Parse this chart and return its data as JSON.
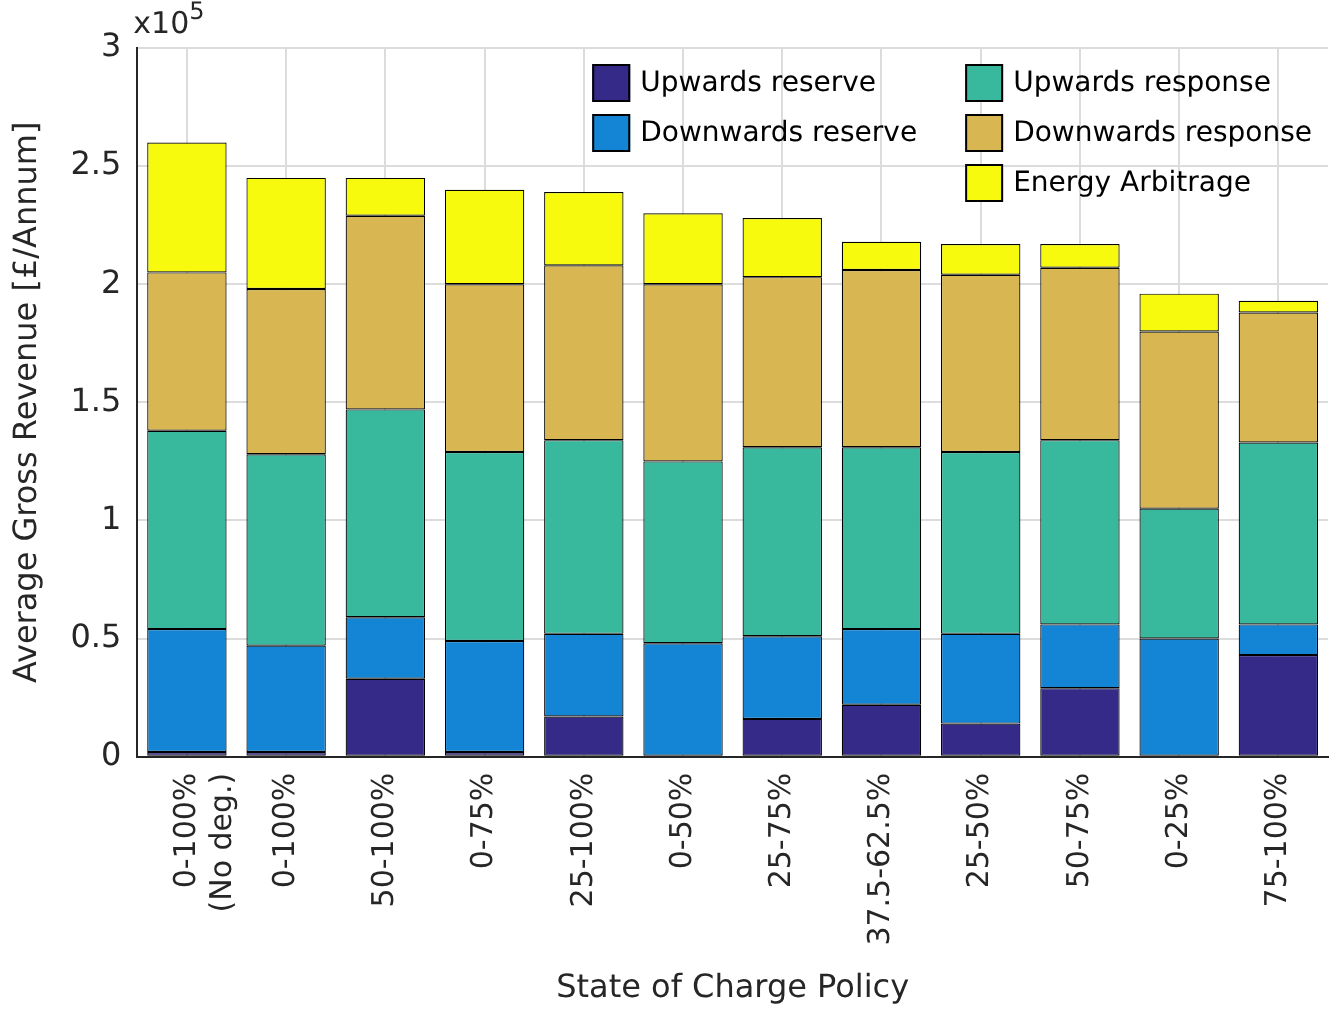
{
  "chart_data": {
    "type": "bar",
    "stacked": true,
    "xlabel": "State of Charge Policy",
    "ylabel": "Average Gross Revenue [£/Annum]",
    "annotations": [
      "x10$^{5}$"
    ],
    "categories": [
      "0-100%\n(No deg.)",
      "0-100%",
      "50-100%",
      "0-75%",
      "25-100%",
      "0-50%",
      "25-75%",
      "37.5-62.5%",
      "25-50%",
      "50-75%",
      "0-25%",
      "75-100%"
    ],
    "series": [
      {
        "name": "Upwards reserve",
        "color": "#352a87",
        "values": [
          0.02,
          0.02,
          0.33,
          0.02,
          0.17,
          null,
          0.16,
          0.22,
          0.14,
          0.29,
          null,
          0.43
        ]
      },
      {
        "name": "Downwards reserve",
        "color": "#1485d4",
        "values": [
          0.52,
          0.45,
          0.26,
          0.47,
          0.35,
          0.48,
          0.35,
          0.32,
          0.38,
          0.27,
          0.5,
          0.13
        ]
      },
      {
        "name": "Upwards response",
        "color": "#38b99e",
        "values": [
          0.84,
          0.81,
          0.88,
          0.8,
          0.82,
          0.77,
          0.8,
          0.77,
          0.77,
          0.78,
          0.55,
          0.77
        ]
      },
      {
        "name": "Downwards response",
        "color": "#d8b651",
        "values": [
          0.67,
          0.7,
          0.82,
          0.71,
          0.74,
          0.75,
          0.72,
          0.75,
          0.75,
          0.73,
          0.75,
          0.55
        ]
      },
      {
        "name": "Energy Arbitrage",
        "color": "#f8fa0d",
        "values": [
          0.55,
          0.47,
          0.16,
          0.4,
          0.31,
          0.3,
          0.25,
          0.12,
          0.13,
          0.1,
          0.16,
          0.05
        ]
      }
    ],
    "ylim": [
      0,
      3
    ],
    "yticks": [
      0,
      0.5,
      1,
      1.5,
      2,
      2.5,
      3
    ],
    "grid": true,
    "legend": "top right"
  }
}
